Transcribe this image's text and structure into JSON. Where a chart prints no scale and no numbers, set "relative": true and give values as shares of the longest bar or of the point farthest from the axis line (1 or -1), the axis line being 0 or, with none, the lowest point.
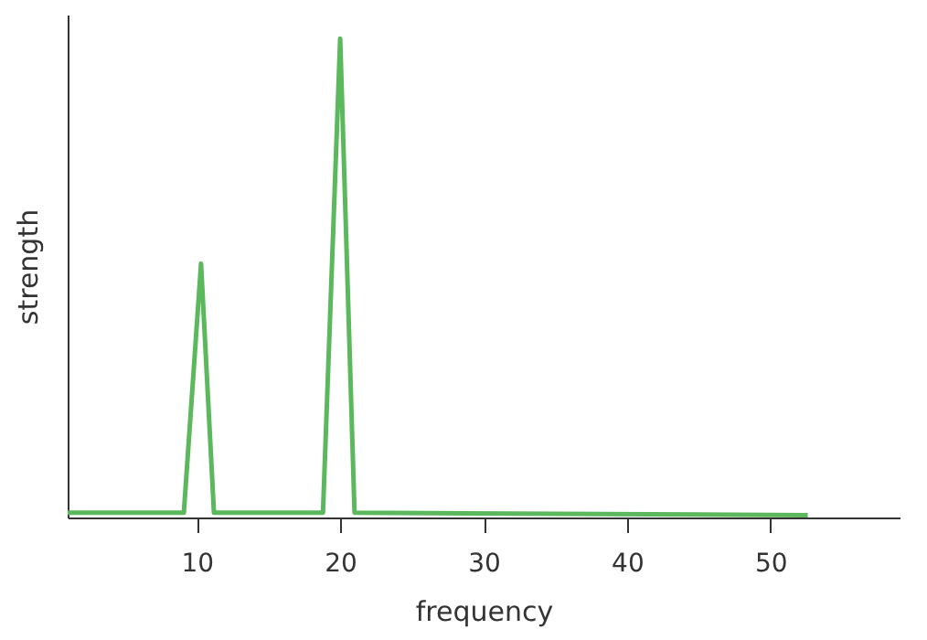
{
  "chart_data": {
    "type": "line",
    "xlabel": "frequency",
    "ylabel": "strength",
    "relative": true,
    "x": [
      1,
      9.1,
      10.3,
      11.2,
      18.8,
      20,
      21,
      52.6
    ],
    "series": [
      {
        "color": "#5cb85c",
        "values": [
          0.01,
          0.01,
          0.53,
          0.01,
          0.01,
          1,
          0.01,
          0.005
        ]
      }
    ],
    "xlim": [
      1,
      59
    ],
    "xticks": [
      10,
      20,
      30,
      40,
      50
    ],
    "grid": false
  }
}
